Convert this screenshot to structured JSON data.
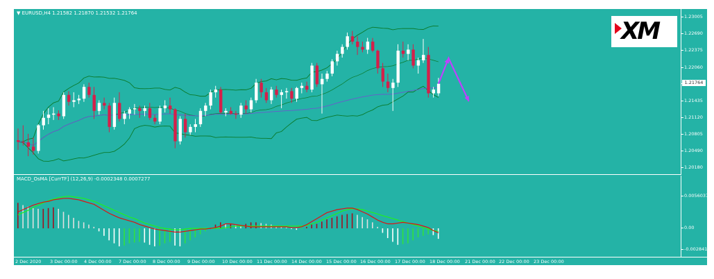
{
  "chart": {
    "symbol_label": "EURUSD,H4  1.21582 1.21870 1.21532 1.21764",
    "current_price": "1.21764",
    "price_ticks": [
      "1.23005",
      "1.22690",
      "1.22375",
      "1.22060",
      "1.21750",
      "1.21435",
      "1.21120",
      "1.20805",
      "1.20490",
      "1.20180"
    ],
    "logo_text": "XM",
    "colors": {
      "background": "#24b3a6",
      "bull": "#ffffff",
      "bear": "#d4204a",
      "band": "#0a7a2a",
      "ma": "#6a5acd",
      "projection": "#c040ff"
    }
  },
  "macd": {
    "label": "MACD_OsMA [CurrTF] (12,26,9) -0.0002348 0.0007277",
    "ticks": [
      "0.0056037",
      "0.00",
      "-0.0028414"
    ],
    "colors": {
      "signal": "#e01010",
      "macd": "#20f020",
      "hist_up_rising": "#a01020",
      "hist_up_falling": "#e0e0e0",
      "hist_down_falling": "#ffffff",
      "hist_down_rising": "#30e040"
    }
  },
  "time_axis": [
    "2 Dec 2020",
    "3 Dec 00:00",
    "4 Dec 00:00",
    "7 Dec 00:00",
    "8 Dec 00:00",
    "9 Dec 00:00",
    "10 Dec 00:00",
    "11 Dec 00:00",
    "14 Dec 00:00",
    "15 Dec 00:00",
    "16 Dec 00:00",
    "17 Dec 00:00",
    "18 Dec 00:00",
    "21 Dec 00:00",
    "22 Dec 00:00",
    "23 Dec 00:00"
  ],
  "chart_data": {
    "type": "candlestick",
    "x": "bar index (H4)",
    "candles": [
      {
        "o": 1.207,
        "h": 1.2092,
        "l": 1.2052,
        "c": 1.2067
      },
      {
        "o": 1.2067,
        "h": 1.2098,
        "l": 1.206,
        "c": 1.2066
      },
      {
        "o": 1.2066,
        "h": 1.2082,
        "l": 1.204,
        "c": 1.2058
      },
      {
        "o": 1.2058,
        "h": 1.2075,
        "l": 1.2043,
        "c": 1.205
      },
      {
        "o": 1.205,
        "h": 1.21,
        "l": 1.2045,
        "c": 1.2098
      },
      {
        "o": 1.2098,
        "h": 1.2125,
        "l": 1.209,
        "c": 1.2112
      },
      {
        "o": 1.2112,
        "h": 1.213,
        "l": 1.21,
        "c": 1.2118
      },
      {
        "o": 1.2118,
        "h": 1.2132,
        "l": 1.2108,
        "c": 1.212
      },
      {
        "o": 1.212,
        "h": 1.2126,
        "l": 1.2108,
        "c": 1.2115
      },
      {
        "o": 1.2115,
        "h": 1.216,
        "l": 1.211,
        "c": 1.2155
      },
      {
        "o": 1.2155,
        "h": 1.2162,
        "l": 1.2135,
        "c": 1.2142
      },
      {
        "o": 1.2142,
        "h": 1.216,
        "l": 1.2132,
        "c": 1.2145
      },
      {
        "o": 1.2145,
        "h": 1.2155,
        "l": 1.2138,
        "c": 1.2148
      },
      {
        "o": 1.2148,
        "h": 1.2175,
        "l": 1.2142,
        "c": 1.217
      },
      {
        "o": 1.217,
        "h": 1.2178,
        "l": 1.215,
        "c": 1.2155
      },
      {
        "o": 1.2155,
        "h": 1.217,
        "l": 1.211,
        "c": 1.2125
      },
      {
        "o": 1.2125,
        "h": 1.2145,
        "l": 1.2118,
        "c": 1.214
      },
      {
        "o": 1.214,
        "h": 1.215,
        "l": 1.2128,
        "c": 1.2135
      },
      {
        "o": 1.2135,
        "h": 1.214,
        "l": 1.2085,
        "c": 1.2095
      },
      {
        "o": 1.2095,
        "h": 1.215,
        "l": 1.209,
        "c": 1.214
      },
      {
        "o": 1.214,
        "h": 1.216,
        "l": 1.2105,
        "c": 1.211
      },
      {
        "o": 1.211,
        "h": 1.2125,
        "l": 1.21,
        "c": 1.212
      },
      {
        "o": 1.212,
        "h": 1.2132,
        "l": 1.211,
        "c": 1.2128
      },
      {
        "o": 1.2128,
        "h": 1.2138,
        "l": 1.2118,
        "c": 1.213
      },
      {
        "o": 1.213,
        "h": 1.2135,
        "l": 1.2112,
        "c": 1.2125
      },
      {
        "o": 1.2125,
        "h": 1.2135,
        "l": 1.2115,
        "c": 1.213
      },
      {
        "o": 1.213,
        "h": 1.214,
        "l": 1.2108,
        "c": 1.2112
      },
      {
        "o": 1.2112,
        "h": 1.2118,
        "l": 1.21,
        "c": 1.2105
      },
      {
        "o": 1.2105,
        "h": 1.2135,
        "l": 1.21,
        "c": 1.213
      },
      {
        "o": 1.213,
        "h": 1.2145,
        "l": 1.2122,
        "c": 1.2135
      },
      {
        "o": 1.2135,
        "h": 1.215,
        "l": 1.212,
        "c": 1.2128
      },
      {
        "o": 1.2128,
        "h": 1.213,
        "l": 1.2055,
        "c": 1.2068
      },
      {
        "o": 1.2068,
        "h": 1.2115,
        "l": 1.2062,
        "c": 1.211
      },
      {
        "o": 1.211,
        "h": 1.212,
        "l": 1.2075,
        "c": 1.2085
      },
      {
        "o": 1.2085,
        "h": 1.21,
        "l": 1.208,
        "c": 1.2095
      },
      {
        "o": 1.2095,
        "h": 1.211,
        "l": 1.2085,
        "c": 1.21
      },
      {
        "o": 1.21,
        "h": 1.213,
        "l": 1.2095,
        "c": 1.2125
      },
      {
        "o": 1.2125,
        "h": 1.214,
        "l": 1.2115,
        "c": 1.2135
      },
      {
        "o": 1.2135,
        "h": 1.2165,
        "l": 1.2128,
        "c": 1.216
      },
      {
        "o": 1.216,
        "h": 1.2172,
        "l": 1.215,
        "c": 1.2165
      },
      {
        "o": 1.2165,
        "h": 1.217,
        "l": 1.212,
        "c": 1.2122
      },
      {
        "o": 1.2122,
        "h": 1.213,
        "l": 1.2115,
        "c": 1.2125
      },
      {
        "o": 1.2125,
        "h": 1.2132,
        "l": 1.2118,
        "c": 1.212
      },
      {
        "o": 1.212,
        "h": 1.2125,
        "l": 1.211,
        "c": 1.2118
      },
      {
        "o": 1.2118,
        "h": 1.214,
        "l": 1.2112,
        "c": 1.2135
      },
      {
        "o": 1.2135,
        "h": 1.2145,
        "l": 1.212,
        "c": 1.2128
      },
      {
        "o": 1.2128,
        "h": 1.215,
        "l": 1.2122,
        "c": 1.2145
      },
      {
        "o": 1.2145,
        "h": 1.2185,
        "l": 1.214,
        "c": 1.2178
      },
      {
        "o": 1.2178,
        "h": 1.2185,
        "l": 1.215,
        "c": 1.216
      },
      {
        "o": 1.216,
        "h": 1.2168,
        "l": 1.214,
        "c": 1.2145
      },
      {
        "o": 1.2145,
        "h": 1.217,
        "l": 1.2138,
        "c": 1.2165
      },
      {
        "o": 1.2165,
        "h": 1.2172,
        "l": 1.215,
        "c": 1.2155
      },
      {
        "o": 1.2155,
        "h": 1.2165,
        "l": 1.213,
        "c": 1.216
      },
      {
        "o": 1.216,
        "h": 1.2168,
        "l": 1.2148,
        "c": 1.2162
      },
      {
        "o": 1.2162,
        "h": 1.2168,
        "l": 1.214,
        "c": 1.2148
      },
      {
        "o": 1.2148,
        "h": 1.217,
        "l": 1.2142,
        "c": 1.2168
      },
      {
        "o": 1.2168,
        "h": 1.2178,
        "l": 1.2158,
        "c": 1.2172
      },
      {
        "o": 1.2172,
        "h": 1.218,
        "l": 1.216,
        "c": 1.2165
      },
      {
        "o": 1.2165,
        "h": 1.2215,
        "l": 1.216,
        "c": 1.221
      },
      {
        "o": 1.221,
        "h": 1.2215,
        "l": 1.217,
        "c": 1.2175
      },
      {
        "o": 1.2175,
        "h": 1.2195,
        "l": 1.212,
        "c": 1.2185
      },
      {
        "o": 1.2185,
        "h": 1.22,
        "l": 1.218,
        "c": 1.2195
      },
      {
        "o": 1.2195,
        "h": 1.2222,
        "l": 1.219,
        "c": 1.2218
      },
      {
        "o": 1.2218,
        "h": 1.2238,
        "l": 1.221,
        "c": 1.2232
      },
      {
        "o": 1.2232,
        "h": 1.225,
        "l": 1.2225,
        "c": 1.2245
      },
      {
        "o": 1.2245,
        "h": 1.2272,
        "l": 1.224,
        "c": 1.2265
      },
      {
        "o": 1.2265,
        "h": 1.2275,
        "l": 1.225,
        "c": 1.2255
      },
      {
        "o": 1.2255,
        "h": 1.2265,
        "l": 1.223,
        "c": 1.2245
      },
      {
        "o": 1.2245,
        "h": 1.2255,
        "l": 1.2235,
        "c": 1.224
      },
      {
        "o": 1.224,
        "h": 1.2262,
        "l": 1.2232,
        "c": 1.2255
      },
      {
        "o": 1.2255,
        "h": 1.2262,
        "l": 1.2235,
        "c": 1.2238
      },
      {
        "o": 1.2238,
        "h": 1.224,
        "l": 1.2195,
        "c": 1.2205
      },
      {
        "o": 1.2205,
        "h": 1.2215,
        "l": 1.217,
        "c": 1.218
      },
      {
        "o": 1.218,
        "h": 1.2195,
        "l": 1.216,
        "c": 1.2168
      },
      {
        "o": 1.2168,
        "h": 1.2185,
        "l": 1.2125,
        "c": 1.2178
      },
      {
        "o": 1.2178,
        "h": 1.225,
        "l": 1.217,
        "c": 1.2238
      },
      {
        "o": 1.2238,
        "h": 1.2255,
        "l": 1.2225,
        "c": 1.2232
      },
      {
        "o": 1.2232,
        "h": 1.225,
        "l": 1.222,
        "c": 1.224
      },
      {
        "o": 1.224,
        "h": 1.225,
        "l": 1.2205,
        "c": 1.221
      },
      {
        "o": 1.221,
        "h": 1.2225,
        "l": 1.2195,
        "c": 1.222
      },
      {
        "o": 1.222,
        "h": 1.226,
        "l": 1.2215,
        "c": 1.223
      },
      {
        "o": 1.223,
        "h": 1.2245,
        "l": 1.215,
        "c": 1.2158
      },
      {
        "o": 1.2158,
        "h": 1.217,
        "l": 1.215,
        "c": 1.2165
      },
      {
        "o": 1.2158,
        "h": 1.2187,
        "l": 1.2153,
        "c": 1.2176
      }
    ],
    "projection": [
      [
        1.2176,
        0
      ],
      [
        1.2224,
        2
      ],
      [
        1.2143,
        6
      ]
    ],
    "macd_hist": [
      3.4,
      3.1,
      2.9,
      2.7,
      2.6,
      2.6,
      2.7,
      2.8,
      2.6,
      2.2,
      1.8,
      1.4,
      1.0,
      0.8,
      0.5,
      0.2,
      -0.4,
      -1.0,
      -1.6,
      -2.0,
      -2.4,
      -2.3,
      -2.0,
      -1.9,
      -1.8,
      -1.9,
      -2.2,
      -2.4,
      -2.3,
      -2.0,
      -1.8,
      -2.3,
      -2.4,
      -2.0,
      -1.6,
      -1.2,
      -0.8,
      -0.4,
      0.0,
      0.5,
      0.8,
      0.6,
      0.6,
      0.4,
      0.3,
      0.6,
      0.8,
      0.8,
      0.7,
      0.6,
      0.5,
      0.3,
      0.2,
      0.1,
      -0.1,
      -0.2,
      -0.1,
      0.2,
      0.5,
      0.6,
      0.9,
      1.2,
      1.4,
      1.6,
      1.8,
      1.9,
      2.0,
      1.8,
      1.5,
      1.2,
      0.8,
      0.2,
      -0.6,
      -1.3,
      -1.8,
      -2.2,
      -2.1,
      -2.0,
      -1.6,
      -1.2,
      -1.0,
      -0.8,
      -0.9,
      -1.4
    ],
    "macd_signal": [
      2.2,
      2.5,
      2.8,
      3.1,
      3.3,
      3.5,
      3.6,
      3.8,
      3.9,
      4.0,
      4.0,
      3.9,
      3.8,
      3.6,
      3.4,
      3.2,
      2.8,
      2.4,
      2.0,
      1.7,
      1.4,
      1.2,
      1.0,
      0.8,
      0.5,
      0.3,
      0.1,
      -0.1,
      -0.2,
      -0.3,
      -0.4,
      -0.5,
      -0.5,
      -0.4,
      -0.3,
      -0.2,
      -0.1,
      -0.1,
      0.0,
      0.1,
      0.3,
      0.6,
      0.6,
      0.5,
      0.4,
      0.3,
      0.2,
      0.2,
      0.2,
      0.2,
      0.2,
      0.2,
      0.2,
      0.2,
      0.1,
      0.1,
      0.2,
      0.5,
      0.9,
      1.3,
      1.7,
      2.1,
      2.3,
      2.5,
      2.6,
      2.7,
      2.7,
      2.5,
      2.2,
      1.9,
      1.5,
      1.1,
      0.8,
      0.6,
      0.6,
      0.7,
      0.8,
      0.7,
      0.6,
      0.5,
      0.3,
      0.1,
      -0.3,
      -0.6
    ],
    "macd_main": [
      1.8,
      2.1,
      2.4,
      2.8,
      3.1,
      3.4,
      3.7,
      3.9,
      4.1,
      4.2,
      4.3,
      4.2,
      4.1,
      4.0,
      3.8,
      3.6,
      3.3,
      3.0,
      2.7,
      2.4,
      2.1,
      1.8,
      1.5,
      1.3,
      1.0,
      0.7,
      0.5,
      0.3,
      0.1,
      0.0,
      -0.1,
      -0.2,
      -0.2,
      -0.1,
      0.0,
      0.0,
      0.0,
      0.0,
      0.0,
      0.0,
      0.0,
      0.1,
      0.2,
      0.3,
      0.3,
      0.3,
      0.3,
      0.3,
      0.3,
      0.3,
      0.3,
      0.3,
      0.3,
      0.3,
      0.3,
      0.3,
      0.3,
      0.4,
      0.6,
      0.8,
      1.1,
      1.4,
      1.7,
      2.0,
      2.3,
      2.5,
      2.6,
      2.6,
      2.5,
      2.3,
      2.1,
      1.9,
      1.7,
      1.5,
      1.3,
      1.1,
      0.9,
      0.7,
      0.5,
      0.3,
      0.1,
      -0.1,
      -0.3,
      -0.4
    ]
  }
}
